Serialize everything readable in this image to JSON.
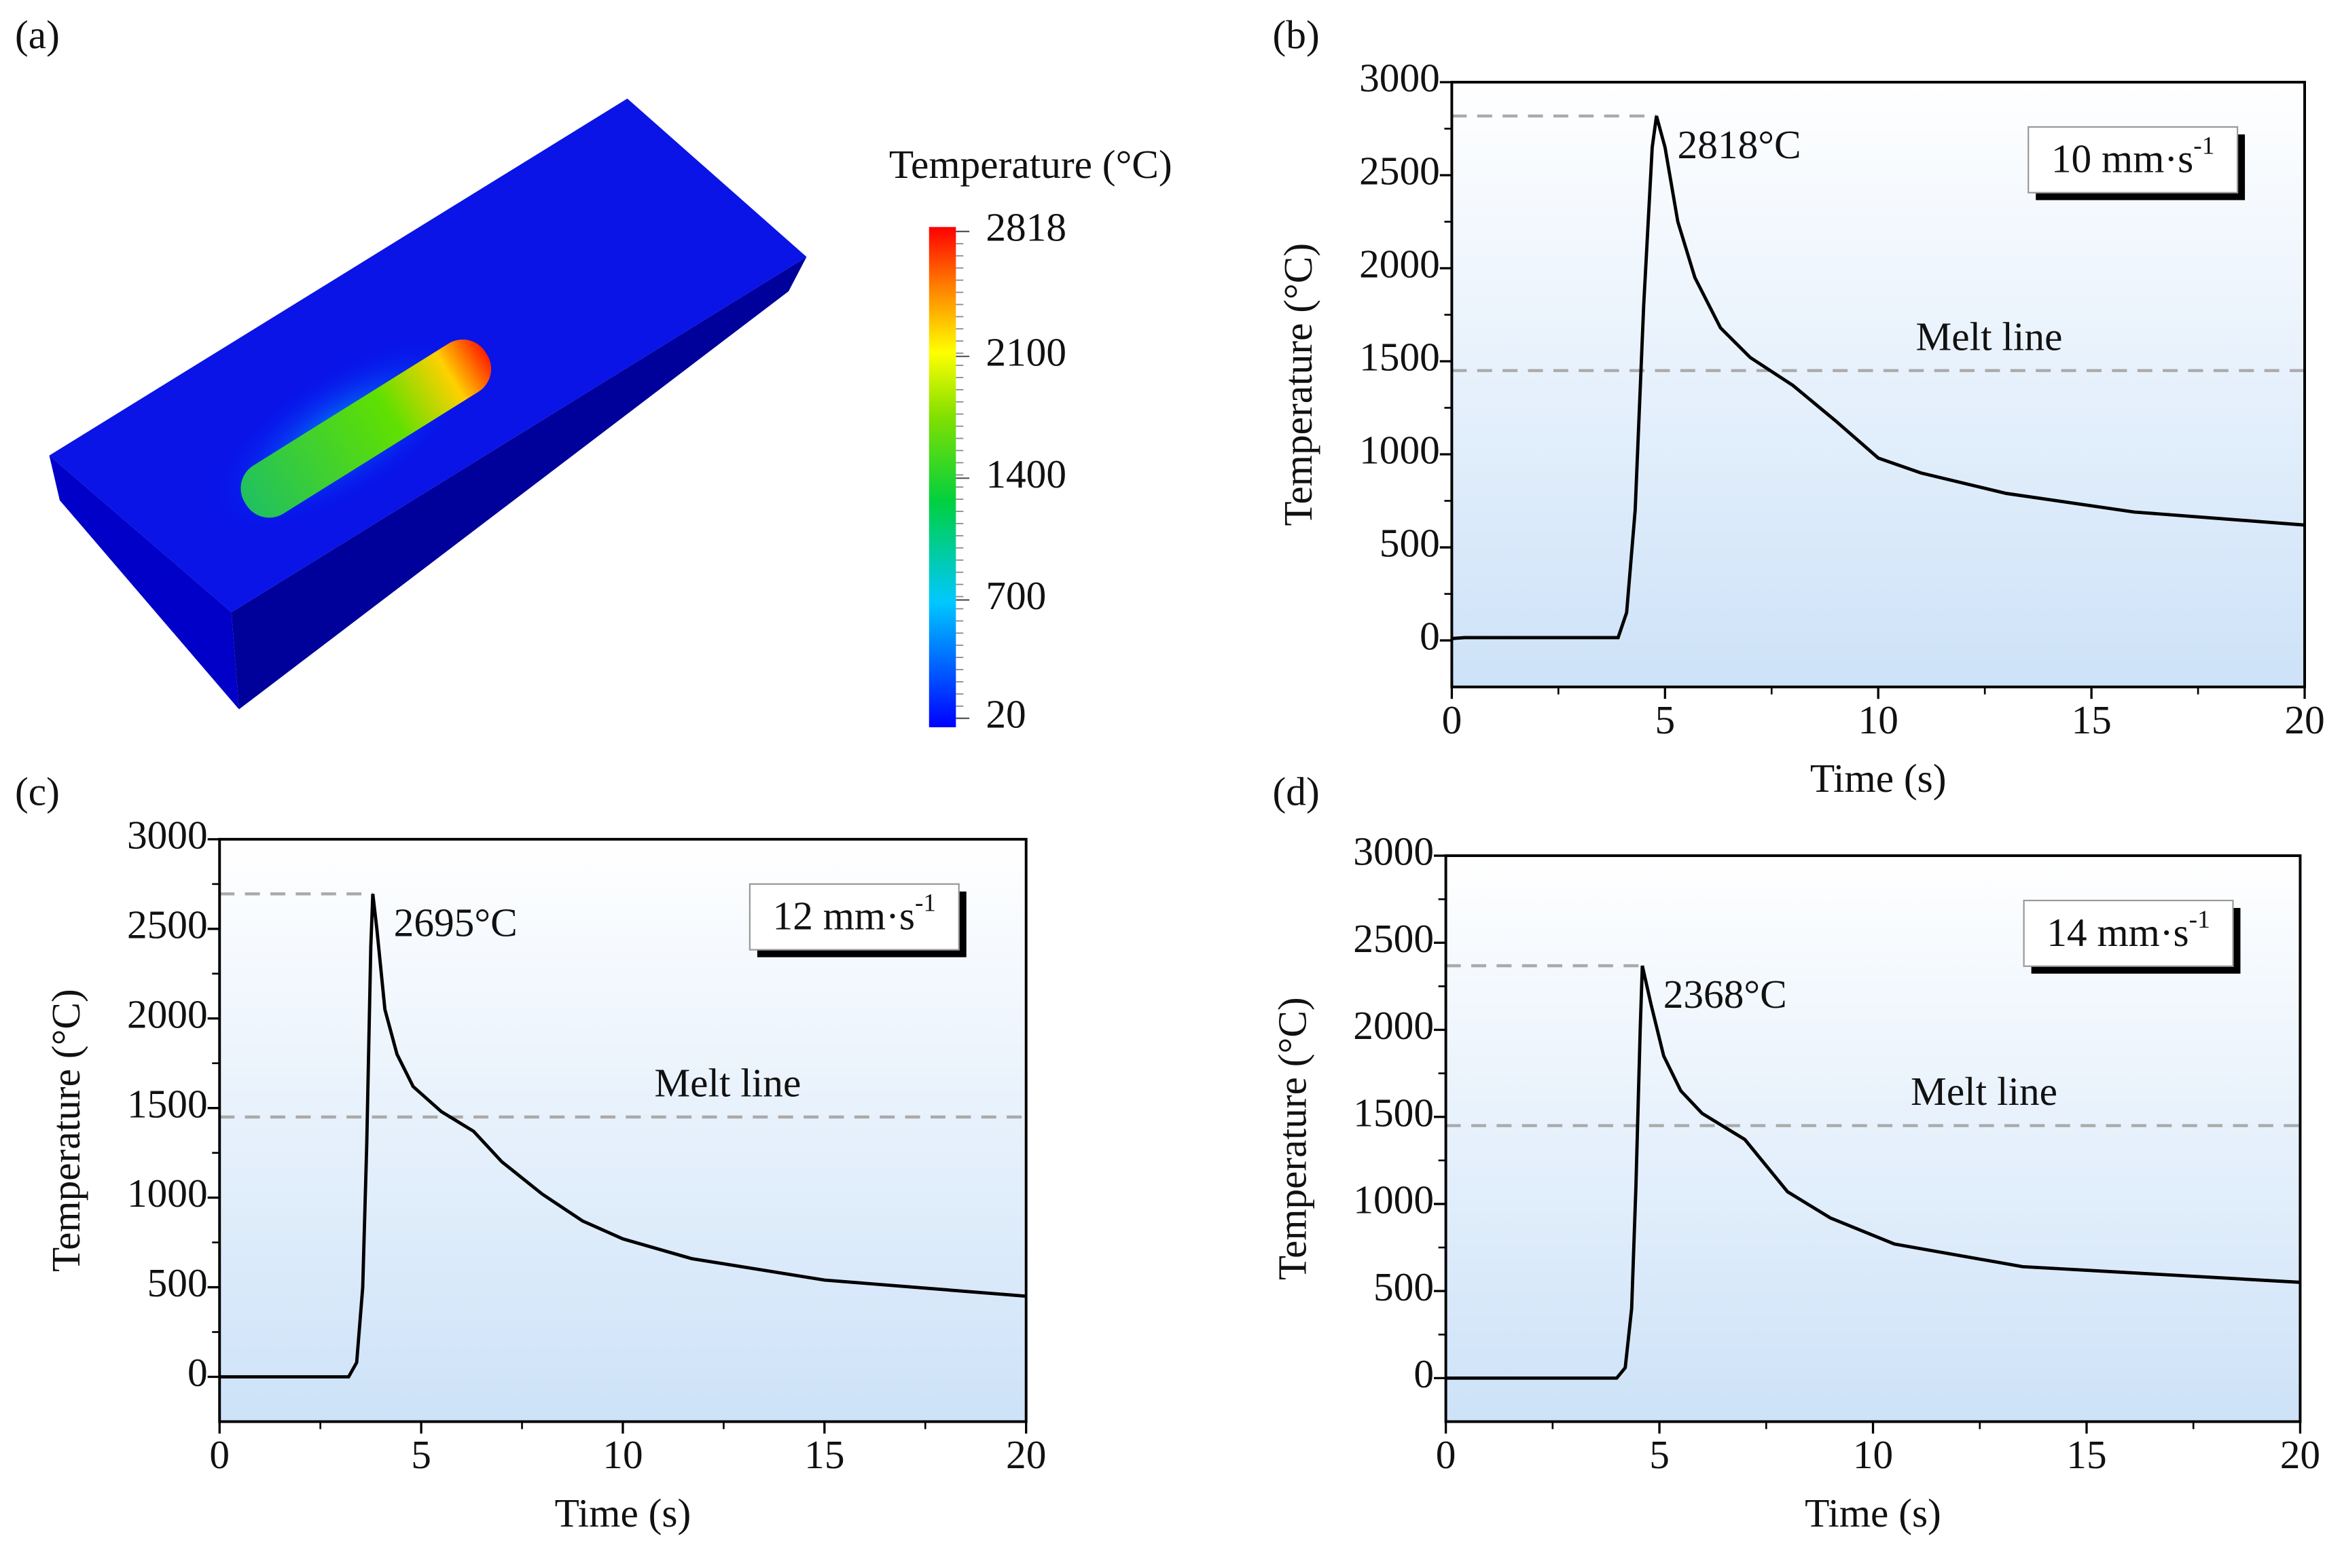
{
  "chart_data": [
    {
      "type": "heatmap",
      "label": "(a)",
      "colorbar_title": "Temperature (°C)",
      "colorbar_lim": [
        20,
        2818
      ],
      "colorbar_ticks": [
        20,
        700,
        1400,
        2100,
        2818
      ]
    },
    {
      "type": "line",
      "label": "(b)",
      "xlabel": "Time (s)",
      "ylabel": "Temperature (°C)",
      "speed_label": "10 mm·s",
      "speed_label_exponent": "-1",
      "x": [
        0,
        0.3,
        3.9,
        4.1,
        4.3,
        4.5,
        4.7,
        4.8,
        5.0,
        5.3,
        5.7,
        6.3,
        7,
        8,
        9,
        10,
        11,
        13,
        16,
        20
      ],
      "values": [
        10,
        15,
        15,
        150,
        700,
        1800,
        2650,
        2818,
        2650,
        2250,
        1950,
        1680,
        1520,
        1370,
        1180,
        980,
        900,
        790,
        690,
        620
      ],
      "color": "#000000",
      "peak": {
        "x": 4.8,
        "value": 2818,
        "label": "2818°C"
      },
      "melt_line": {
        "value": 1450,
        "label": "Melt line"
      },
      "xlim": [
        0,
        20
      ],
      "ylim": [
        -250,
        3000
      ],
      "xticks": [
        0,
        5,
        10,
        15,
        20
      ],
      "yticks": [
        0,
        500,
        1000,
        1500,
        2000,
        2500,
        3000
      ]
    },
    {
      "type": "line",
      "label": "(c)",
      "xlabel": "Time (s)",
      "ylabel": "Temperature (°C)",
      "speed_label": "12 mm·s",
      "speed_label_exponent": "-1",
      "x": [
        0,
        3.2,
        3.4,
        3.55,
        3.65,
        3.75,
        3.8,
        3.9,
        4.1,
        4.4,
        4.8,
        5.5,
        6.3,
        7,
        8,
        9,
        10,
        11.7,
        15,
        20
      ],
      "values": [
        0,
        0,
        80,
        500,
        1300,
        2400,
        2695,
        2500,
        2050,
        1800,
        1620,
        1480,
        1370,
        1200,
        1020,
        870,
        770,
        660,
        540,
        450
      ],
      "color": "#000000",
      "peak": {
        "x": 3.8,
        "value": 2695,
        "label": "2695°C"
      },
      "melt_line": {
        "value": 1450,
        "label": "Melt line"
      },
      "xlim": [
        0,
        20
      ],
      "ylim": [
        -250,
        3000
      ],
      "xticks": [
        0,
        5,
        10,
        15,
        20
      ],
      "yticks": [
        0,
        500,
        1000,
        1500,
        2000,
        2500,
        3000
      ]
    },
    {
      "type": "line",
      "label": "(d)",
      "xlabel": "Time (s)",
      "ylabel": "Temperature (°C)",
      "speed_label": "14 mm·s",
      "speed_label_exponent": "-1",
      "x": [
        0,
        4,
        4.2,
        4.35,
        4.45,
        4.55,
        4.6,
        4.8,
        5.1,
        5.5,
        6,
        7,
        8,
        9,
        10.5,
        13.5,
        20
      ],
      "values": [
        0,
        0,
        60,
        400,
        1100,
        2000,
        2368,
        2150,
        1850,
        1650,
        1520,
        1370,
        1070,
        920,
        770,
        640,
        550
      ],
      "color": "#000000",
      "peak": {
        "x": 4.6,
        "value": 2368,
        "label": "2368°C"
      },
      "melt_line": {
        "value": 1450,
        "label": "Melt line"
      },
      "xlim": [
        0,
        20
      ],
      "ylim": [
        -250,
        3000
      ],
      "xticks": [
        0,
        5,
        10,
        15,
        20
      ],
      "yticks": [
        0,
        500,
        1000,
        1500,
        2000,
        2500,
        3000
      ]
    }
  ]
}
